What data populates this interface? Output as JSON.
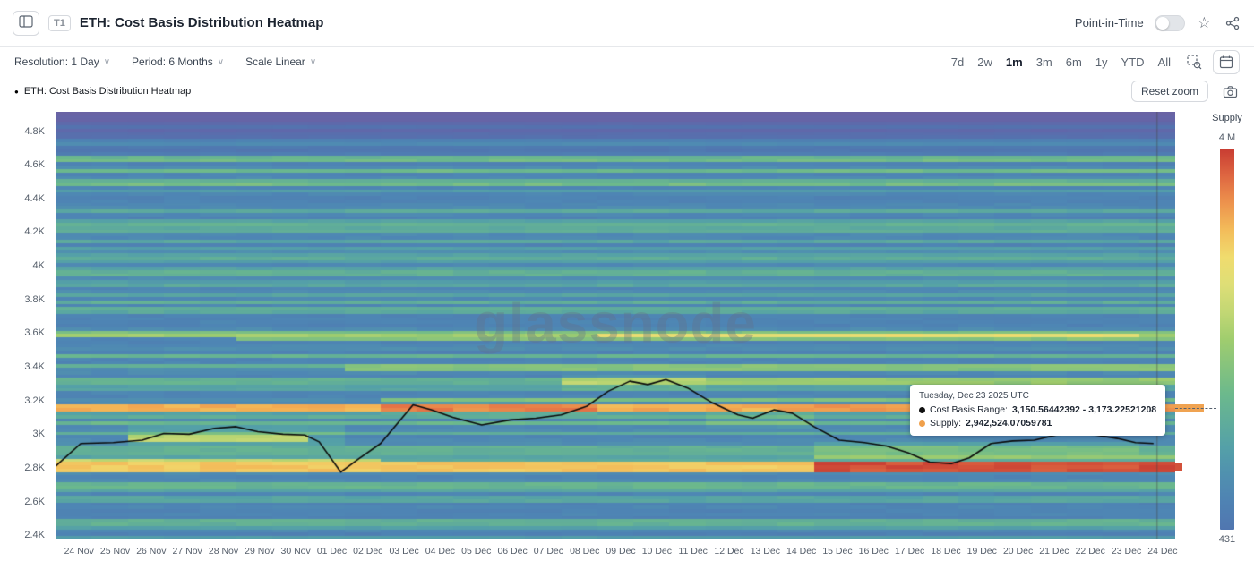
{
  "header": {
    "t1_badge": "T1",
    "title": "ETH: Cost Basis Distribution Heatmap",
    "point_in_time_label": "Point-in-Time"
  },
  "toolbar": {
    "resolution_label": "Resolution: 1 Day",
    "period_label": "Period: 6 Months",
    "scale_label": "Scale Linear",
    "ranges": [
      "7d",
      "2w",
      "1m",
      "3m",
      "6m",
      "1y",
      "YTD",
      "All"
    ],
    "selected_range": "1m"
  },
  "legend": {
    "series_label": "ETH: Cost Basis Distribution Heatmap",
    "reset_zoom_label": "Reset zoom"
  },
  "tooltip": {
    "date": "Tuesday, Dec 23 2025 UTC",
    "cost_basis_label": "Cost Basis Range:",
    "cost_basis_value": "3,150.56442392 - 3,173.22521208",
    "supply_label": "Supply:",
    "supply_value": "2,942,524.07059781"
  },
  "watermark": "glassnode",
  "colors": {
    "supply_dot": "#f0a04b",
    "cost_basis_dot": "#111111",
    "price_line": "#0b0b0b"
  },
  "chart_data": {
    "type": "heatmap",
    "title": "ETH: Cost Basis Distribution Heatmap",
    "x_labels": [
      "24 Nov",
      "25 Nov",
      "26 Nov",
      "27 Nov",
      "28 Nov",
      "29 Nov",
      "30 Nov",
      "01 Dec",
      "02 Dec",
      "03 Dec",
      "04 Dec",
      "05 Dec",
      "06 Dec",
      "07 Dec",
      "08 Dec",
      "09 Dec",
      "10 Dec",
      "11 Dec",
      "12 Dec",
      "13 Dec",
      "14 Dec",
      "15 Dec",
      "16 Dec",
      "17 Dec",
      "18 Dec",
      "19 Dec",
      "20 Dec",
      "21 Dec",
      "22 Dec",
      "23 Dec",
      "24 Dec"
    ],
    "y_ticks": [
      {
        "label": "4.8K",
        "value": 4800
      },
      {
        "label": "4.6K",
        "value": 4600
      },
      {
        "label": "4.4K",
        "value": 4400
      },
      {
        "label": "4.2K",
        "value": 4200
      },
      {
        "label": "4K",
        "value": 4000
      },
      {
        "label": "3.8K",
        "value": 3800
      },
      {
        "label": "3.6K",
        "value": 3600
      },
      {
        "label": "3.4K",
        "value": 3400
      },
      {
        "label": "3.2K",
        "value": 3200
      },
      {
        "label": "3K",
        "value": 3000
      },
      {
        "label": "2.8K",
        "value": 2800
      },
      {
        "label": "2.6K",
        "value": 2600
      },
      {
        "label": "2.4K",
        "value": 2400
      }
    ],
    "price_min": 2380,
    "price_max": 4920,
    "bin_size": 20,
    "days": 31,
    "colorbar": {
      "label": "Supply",
      "top_label": "4 M",
      "bottom_label": "431"
    },
    "colormap_stops": [
      {
        "t": 0.0,
        "c": [
          110,
          96,
          160
        ]
      },
      {
        "t": 0.08,
        "c": [
          97,
          103,
          170
        ]
      },
      {
        "t": 0.16,
        "c": [
          80,
          118,
          176
        ]
      },
      {
        "t": 0.24,
        "c": [
          78,
          134,
          180
        ]
      },
      {
        "t": 0.34,
        "c": [
          84,
          160,
          168
        ]
      },
      {
        "t": 0.46,
        "c": [
          108,
          185,
          140
        ]
      },
      {
        "t": 0.58,
        "c": [
          160,
          205,
          110
        ]
      },
      {
        "t": 0.68,
        "c": [
          216,
          222,
          120
        ]
      },
      {
        "t": 0.76,
        "c": [
          240,
          220,
          110
        ]
      },
      {
        "t": 0.84,
        "c": [
          244,
          178,
          84
        ]
      },
      {
        "t": 0.92,
        "c": [
          229,
          116,
          70
        ]
      },
      {
        "t": 1.0,
        "c": [
          200,
          60,
          50
        ]
      }
    ],
    "base_intensity": 0.22,
    "bands": [
      [
        3144,
        3182,
        0,
        31,
        0.84
      ],
      [
        3144,
        3182,
        20,
        31,
        0.88
      ],
      [
        2788,
        2834,
        0,
        21.5,
        0.8
      ],
      [
        2788,
        2834,
        21.5,
        31,
        0.97
      ],
      [
        2838,
        2856,
        0,
        9,
        0.64
      ],
      [
        3584,
        3606,
        0,
        31,
        0.58
      ],
      [
        3584,
        3606,
        15.5,
        29.8,
        0.74
      ],
      [
        3610,
        3628,
        0,
        31,
        0.5
      ],
      [
        3556,
        3574,
        5,
        31,
        0.52
      ],
      [
        3468,
        3486,
        0,
        31,
        0.43
      ],
      [
        3390,
        3410,
        8.5,
        31,
        0.52
      ],
      [
        3298,
        3332,
        0,
        14.5,
        0.42
      ],
      [
        3298,
        3332,
        14.5,
        31,
        0.56
      ],
      [
        3198,
        3224,
        9.5,
        31,
        0.5
      ],
      [
        3098,
        3120,
        0,
        31,
        0.4
      ],
      [
        3058,
        3082,
        0,
        31,
        0.45
      ],
      [
        2952,
        3008,
        2,
        7.5,
        0.55
      ],
      [
        2898,
        2932,
        0,
        31,
        0.42
      ],
      [
        2858,
        2888,
        21.5,
        31,
        0.56
      ],
      [
        2688,
        2714,
        0,
        31,
        0.44
      ],
      [
        2598,
        2642,
        0,
        31,
        0.36
      ],
      [
        2468,
        2502,
        0,
        31,
        0.42
      ],
      [
        4622,
        4650,
        0,
        31,
        0.52
      ],
      [
        4552,
        4582,
        0,
        31,
        0.46
      ],
      [
        4478,
        4506,
        0,
        31,
        0.48
      ],
      [
        4328,
        4348,
        0,
        31,
        0.38
      ],
      [
        4238,
        4260,
        0,
        31,
        0.42
      ],
      [
        4138,
        4158,
        0,
        31,
        0.37
      ],
      [
        4038,
        4060,
        0,
        31,
        0.4
      ],
      [
        3948,
        3970,
        0,
        31,
        0.42
      ],
      [
        3886,
        3906,
        0,
        31,
        0.38
      ],
      [
        3773,
        3794,
        0,
        31,
        0.4
      ],
      [
        3722,
        3742,
        0,
        31,
        0.38
      ]
    ],
    "patches": [
      [
        2950,
        3060,
        2,
        8,
        0.08
      ],
      [
        3120,
        3200,
        9.5,
        15,
        0.06
      ],
      [
        3270,
        3350,
        14.5,
        18.5,
        0.06
      ],
      [
        2880,
        2960,
        21.5,
        30.5,
        0.07
      ],
      [
        3050,
        3130,
        18.5,
        21.5,
        0.05
      ]
    ],
    "price_line": {
      "x": [
        0,
        0.7,
        1.6,
        2.4,
        3.0,
        3.7,
        4.4,
        5.0,
        5.6,
        6.3,
        6.9,
        7.3,
        7.9,
        8.4,
        9.0,
        9.9,
        10.4,
        11.0,
        11.8,
        12.6,
        13.3,
        14.0,
        14.7,
        15.3,
        15.9,
        16.4,
        16.9,
        17.5,
        18.2,
        18.9,
        19.3,
        19.9,
        20.4,
        21.0,
        21.7,
        22.4,
        23.0,
        23.6,
        24.2,
        24.8,
        25.3,
        25.9,
        26.5,
        27.1,
        27.7,
        28.2,
        28.8,
        29.4,
        29.9,
        30.4
      ],
      "y": [
        2815,
        2950,
        2955,
        2970,
        3010,
        3005,
        3040,
        3050,
        3020,
        3005,
        3000,
        2960,
        2780,
        2860,
        2950,
        3180,
        3150,
        3105,
        3060,
        3090,
        3100,
        3120,
        3170,
        3260,
        3320,
        3300,
        3330,
        3280,
        3190,
        3120,
        3100,
        3150,
        3130,
        3050,
        2970,
        2955,
        2935,
        2895,
        2840,
        2830,
        2865,
        2950,
        2965,
        2970,
        3000,
        3020,
        3000,
        2980,
        2955,
        2950
      ]
    },
    "highlight_price": 3162,
    "red_band_price": 2810,
    "crosshair_day": 30.5
  }
}
